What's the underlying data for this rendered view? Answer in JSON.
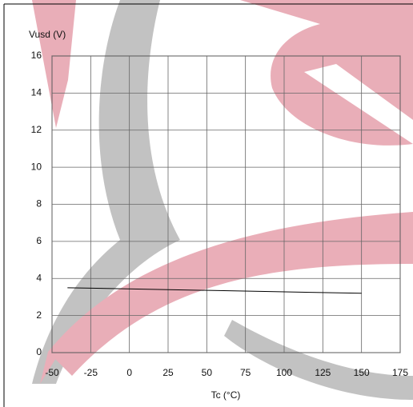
{
  "chart_data": {
    "type": "line",
    "y_label": "Vusd (V)",
    "x_label": "Tc (°C)",
    "x": [
      -40,
      150
    ],
    "values": [
      3.5,
      3.2
    ],
    "color": "#000000",
    "xlim": [
      -50,
      175
    ],
    "xticks": [
      -50,
      -25,
      0,
      25,
      50,
      75,
      100,
      125,
      150,
      175
    ],
    "ylim": [
      0,
      16
    ],
    "yticks": [
      0,
      2,
      4,
      6,
      8,
      10,
      12,
      14,
      16
    ],
    "grid": true
  }
}
